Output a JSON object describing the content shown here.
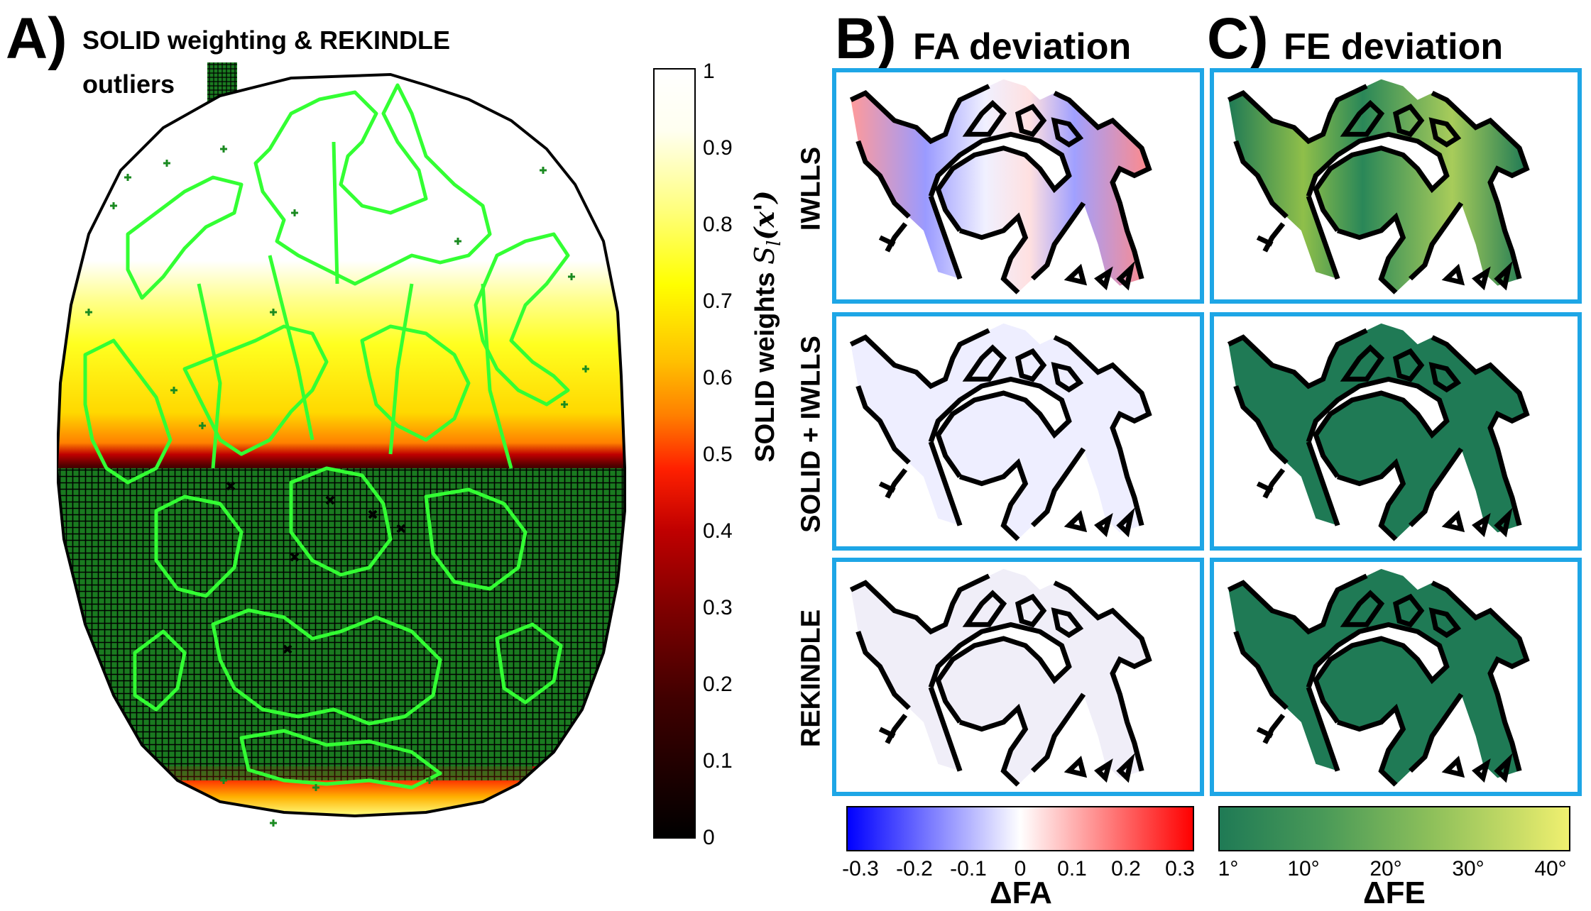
{
  "panel_a": {
    "letter": "A)",
    "title_line1": "SOLID weighting & REKINDLE",
    "title_line2": "outliers",
    "colorbar": {
      "label": "SOLID weights",
      "label_math": "S",
      "label_sub": "l",
      "label_arg": "(x')",
      "ticks": [
        "1",
        "0.9",
        "0.8",
        "0.7",
        "0.6",
        "0.5",
        "0.4",
        "0.3",
        "0.2",
        "0.1",
        "0"
      ],
      "colors": [
        "#ffffff",
        "#ffff80",
        "#ffe000",
        "#ffa000",
        "#ff4000",
        "#c00000",
        "#600000",
        "#000000"
      ]
    },
    "overlay_color": "#00a000",
    "contour_color": "#33ff33"
  },
  "panel_b": {
    "letter": "B)",
    "title": "FA deviation",
    "colorbar": {
      "label": "ΔFA",
      "ticks": [
        "-0.3",
        "-0.2",
        "-0.1",
        "0",
        "0.1",
        "0.2",
        "0.3"
      ]
    }
  },
  "panel_c": {
    "letter": "C)",
    "title": "FE deviation",
    "colorbar": {
      "label": "ΔFE",
      "ticks": [
        "1°",
        "10°",
        "20°",
        "30°",
        "40°"
      ]
    }
  },
  "rows": [
    "IWLLS",
    "SOLID + IWLLS",
    "REKINDLE"
  ],
  "colors": {
    "frame": "#1ea6e6",
    "fe_background": "#1f7a55",
    "contour": "#000000"
  }
}
